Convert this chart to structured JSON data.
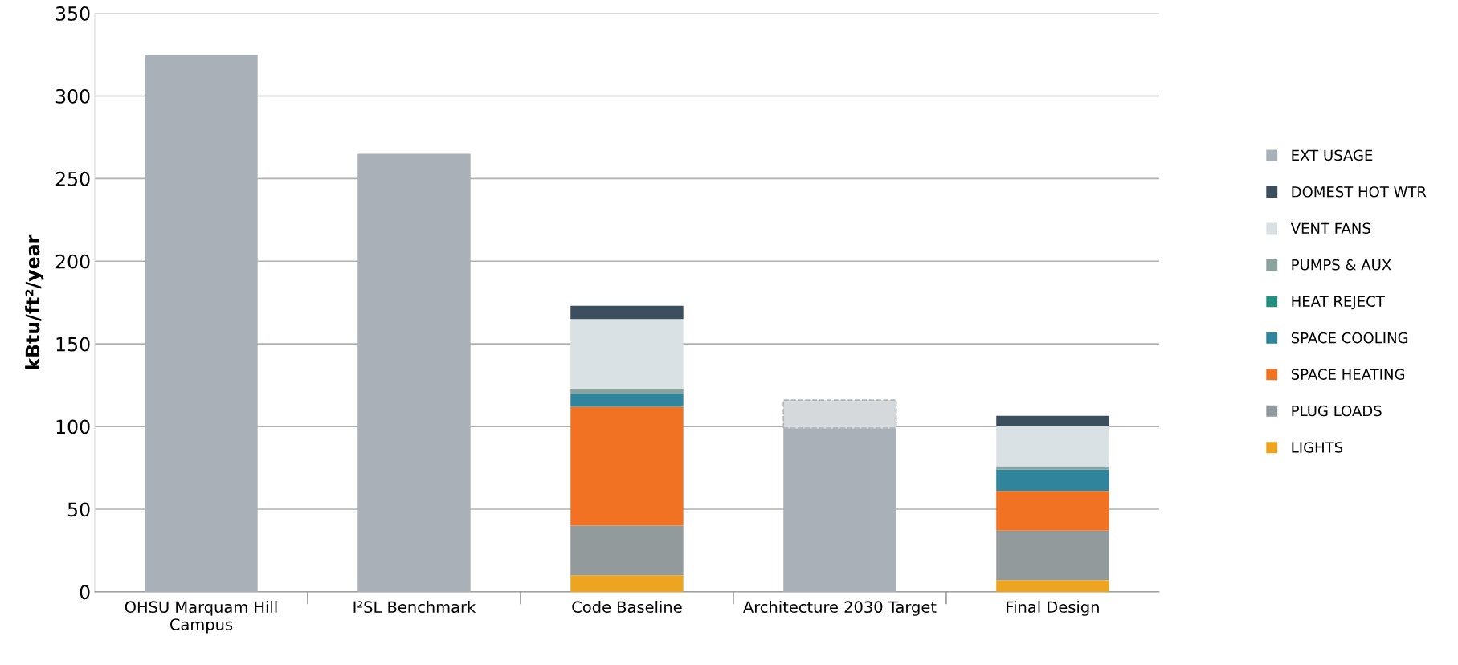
{
  "chart_data": {
    "type": "bar",
    "stacked": true,
    "ylabel": "kBtu/ft²/year",
    "categories": [
      "OHSU Marquam Hill\nCampus",
      "I²SL Benchmark",
      "Code Baseline",
      "Architecture 2030 Target",
      "Final Design"
    ],
    "series": [
      {
        "name": "LIGHTS",
        "color": "#eda521",
        "values": [
          null,
          null,
          10,
          null,
          7
        ]
      },
      {
        "name": "PLUG LOADS",
        "color": "#939a9c",
        "values": [
          null,
          null,
          30,
          null,
          30
        ]
      },
      {
        "name": "SPACE HEATING",
        "color": "#f27224",
        "values": [
          null,
          null,
          72,
          null,
          24
        ]
      },
      {
        "name": "SPACE COOLING",
        "color": "#30849c",
        "values": [
          null,
          null,
          8,
          null,
          13
        ]
      },
      {
        "name": "HEAT REJECT",
        "color": "#22907f",
        "values": [
          null,
          null,
          null,
          null,
          null
        ]
      },
      {
        "name": "PUMPS & AUX",
        "color": "#8ba39e",
        "values": [
          null,
          null,
          3,
          null,
          2
        ]
      },
      {
        "name": "VENT FANS",
        "color": "#dae1e4",
        "values": [
          null,
          null,
          42,
          null,
          24.5
        ]
      },
      {
        "name": "DOMEST HOT WTR",
        "color": "#3b4f5e",
        "values": [
          null,
          null,
          8,
          null,
          6
        ]
      },
      {
        "name": "EXT USAGE",
        "color": "#aab0b7",
        "values": [
          325,
          265,
          null,
          99,
          null
        ]
      },
      {
        "color": "#d5d9dc",
        "line_style": "dashed",
        "values": [
          null,
          null,
          null,
          17,
          null
        ]
      }
    ],
    "ylim": [
      0,
      350
    ],
    "yticks": [
      0,
      50,
      100,
      150,
      200,
      250,
      300,
      350
    ],
    "grid": "y",
    "legend": "right"
  }
}
